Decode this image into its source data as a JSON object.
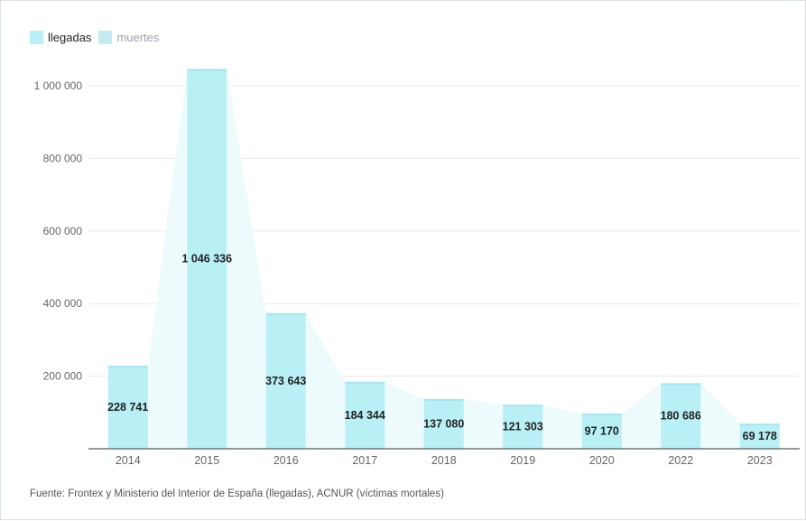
{
  "colors": {
    "bar": "#b9f0f6",
    "bar_top": "#a6e7ef",
    "area": "#eefbfd",
    "grid": "#e8e8e8",
    "axis": "#333333",
    "tick_text": "#666666",
    "label_text": "#222222",
    "legend_llegadas": "#b9f0f6",
    "legend_muertes": "#c2eaf0"
  },
  "legend": {
    "items": [
      {
        "label": "llegadas",
        "active": true
      },
      {
        "label": "muertes",
        "active": false
      }
    ]
  },
  "source_note": "Fuente: Frontex y Ministerio del Interior de España (llegadas), ACNUR (víctimas mortales)",
  "chart_data": {
    "type": "bar",
    "categories": [
      "2014",
      "2015",
      "2016",
      "2017",
      "2018",
      "2019",
      "2020",
      "2022",
      "2023"
    ],
    "series": [
      {
        "name": "llegadas",
        "values": [
          228741,
          1046336,
          373643,
          184344,
          137080,
          121303,
          97170,
          180686,
          69178
        ]
      }
    ],
    "data_labels": [
      "228 741",
      "1 046 336",
      "373 643",
      "184 344",
      "137 080",
      "121 303",
      "97 170",
      "180 686",
      "69 178"
    ],
    "y_ticks": [
      200000,
      400000,
      600000,
      800000,
      1000000
    ],
    "y_tick_labels": [
      "200 000",
      "400 000",
      "600 000",
      "800 000",
      "1 000 000"
    ],
    "ylim": [
      0,
      1000000
    ],
    "grid": true,
    "legend_position": "top-left",
    "title": "",
    "xlabel": "",
    "ylabel": ""
  }
}
